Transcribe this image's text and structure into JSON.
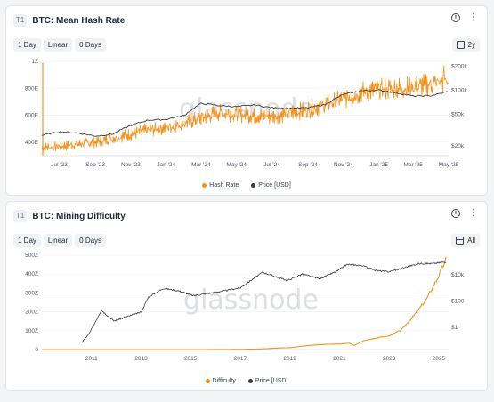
{
  "colors": {
    "hash": "#f7931a",
    "price": "#3a3a3a",
    "grid": "#eceef1",
    "watermark": "#dcdfe3"
  },
  "watermark": "glassnode",
  "card1": {
    "tier": "T1",
    "title": "BTC: Mean Hash Rate",
    "toolbar": [
      "1 Day",
      "Linear",
      "0 Days"
    ],
    "range": "2y",
    "legend": [
      "Hash Rate",
      "Price [USD]"
    ]
  },
  "card2": {
    "tier": "T1",
    "title": "BTC: Mining Difficulty",
    "toolbar": [
      "1 Day",
      "Linear",
      "0 Days"
    ],
    "range": "All",
    "legend": [
      "Difficulty",
      "Price [USD]"
    ]
  },
  "chart_data": [
    {
      "type": "line",
      "title": "BTC: Mean Hash Rate",
      "x_ticks": [
        "Jul '23",
        "Sep '23",
        "Nov '23",
        "Jan '24",
        "Mar '24",
        "May '24",
        "Jul '24",
        "Sep '24",
        "Nov '24",
        "Jan '25",
        "Mar '25",
        "May '25"
      ],
      "y_left_ticks": [
        "400E",
        "600E",
        "800E",
        "1Z"
      ],
      "y_right_ticks": [
        "$20k",
        "$50k",
        "$100k",
        "$200k"
      ],
      "ylim_left": [
        300,
        1000
      ],
      "grid": true,
      "legend_position": "bottom",
      "series": [
        {
          "name": "Hash Rate",
          "axis": "left",
          "x": [
            "2023-06-01",
            "2023-07-01",
            "2023-08-01",
            "2023-09-01",
            "2023-10-01",
            "2023-11-01",
            "2023-12-01",
            "2024-01-01",
            "2024-02-01",
            "2024-03-01",
            "2024-04-01",
            "2024-05-01",
            "2024-06-01",
            "2024-07-01",
            "2024-08-01",
            "2024-09-01",
            "2024-10-01",
            "2024-11-01",
            "2024-12-01",
            "2025-01-01",
            "2025-02-01",
            "2025-03-01",
            "2025-04-01",
            "2025-05-01"
          ],
          "values": [
            360,
            370,
            385,
            400,
            430,
            460,
            490,
            510,
            540,
            580,
            620,
            610,
            600,
            590,
            620,
            640,
            680,
            720,
            770,
            790,
            800,
            810,
            830,
            860
          ]
        },
        {
          "name": "Price [USD]",
          "axis": "right",
          "x": [
            "2023-06-01",
            "2023-07-01",
            "2023-08-01",
            "2023-09-01",
            "2023-10-01",
            "2023-11-01",
            "2023-12-01",
            "2024-01-01",
            "2024-02-01",
            "2024-03-01",
            "2024-04-01",
            "2024-05-01",
            "2024-06-01",
            "2024-07-01",
            "2024-08-01",
            "2024-09-01",
            "2024-10-01",
            "2024-11-01",
            "2024-12-01",
            "2025-01-01",
            "2025-02-01",
            "2025-03-01",
            "2025-04-01",
            "2025-05-01"
          ],
          "values": [
            27000,
            30000,
            29000,
            26500,
            28000,
            36000,
            42000,
            43000,
            48000,
            68000,
            64000,
            62000,
            65000,
            60000,
            59000,
            60000,
            66000,
            88000,
            98000,
            100000,
            92000,
            84000,
            85000,
            96000
          ]
        }
      ]
    },
    {
      "type": "line",
      "title": "BTC: Mining Difficulty",
      "x_ticks": [
        "2011",
        "2013",
        "2015",
        "2017",
        "2019",
        "2021",
        "2023",
        "2025"
      ],
      "y_left_ticks": [
        "0",
        "100Z",
        "200Z",
        "300Z",
        "400Z",
        "500Z"
      ],
      "y_right_ticks": [
        "$1",
        "$100",
        "$10k"
      ],
      "ylim_left": [
        0,
        500
      ],
      "grid": true,
      "legend_position": "bottom",
      "series": [
        {
          "name": "Difficulty",
          "axis": "left",
          "x": [
            2009.0,
            2011.0,
            2013.0,
            2015.0,
            2016.0,
            2017.0,
            2017.8,
            2018.5,
            2019.0,
            2019.5,
            2020.0,
            2020.5,
            2021.0,
            2021.4,
            2021.6,
            2022.0,
            2022.5,
            2023.0,
            2023.5,
            2024.0,
            2024.5,
            2025.0,
            2025.3
          ],
          "values": [
            0,
            0,
            0,
            0.1,
            0.3,
            1,
            3,
            8,
            10,
            18,
            24,
            28,
            30,
            34,
            22,
            48,
            62,
            72,
            105,
            180,
            265,
            390,
            480
          ]
        },
        {
          "name": "Price [USD]",
          "axis": "right",
          "x": [
            2010.6,
            2010.9,
            2011.4,
            2011.9,
            2012.5,
            2013.0,
            2013.3,
            2013.9,
            2014.5,
            2015.1,
            2015.8,
            2016.5,
            2017.0,
            2017.9,
            2018.9,
            2019.5,
            2020.2,
            2020.9,
            2021.3,
            2021.9,
            2022.5,
            2023.0,
            2023.5,
            2024.2,
            2024.8,
            2025.3
          ],
          "values": [
            0.07,
            0.3,
            20,
            3,
            7,
            14,
            200,
            900,
            600,
            250,
            400,
            650,
            1000,
            15000,
            3600,
            11000,
            5000,
            18000,
            60000,
            50000,
            20000,
            16500,
            30000,
            70000,
            70000,
            95000
          ]
        }
      ]
    }
  ]
}
